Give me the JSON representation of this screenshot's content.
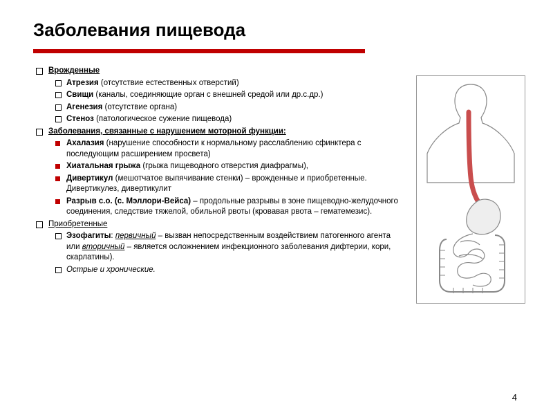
{
  "title": "Заболевания пищевода",
  "colors": {
    "accent": "#c00000",
    "text": "#000000",
    "bg": "#ffffff",
    "border": "#999999"
  },
  "sections": [
    {
      "heading": "Врожденные",
      "heading_style": "bold uline",
      "bullet_style": "hollow",
      "items": [
        {
          "term": "Атрезия",
          "desc": " (отсутствие естественных отверстий)"
        },
        {
          "term": "Свищи",
          "desc": " (каналы, соединяющие орган с внешней средой или др.с.др.)"
        },
        {
          "term": "Агенезия",
          "desc": " (отсутствие органа)"
        },
        {
          "term": "Стеноз",
          "desc": " (патологическое сужение пищевода)"
        }
      ]
    },
    {
      "heading": "Заболевания, связанные с нарушением моторной функции:",
      "heading_style": "bold uline",
      "bullet_style": "red",
      "items": [
        {
          "term": "Ахалазия",
          "desc": " (нарушение способности к нормальному расслаблению сфинктера с последующим расширением просвета)"
        },
        {
          "term": "Хиатальная грыжа",
          "desc": " (грыжа пищеводного отверстия диафрагмы),"
        },
        {
          "term": "Дивертикул",
          "desc": " (мешотчатое выпячивание стенки) – врожденные и приобретенные. Дивертикулез, дивертикулит"
        },
        {
          "term": "Разрыв с.о. (с. Мэллори-Вейса)",
          "desc": " – продольные разрывы в зоне пищеводно-желудочного соединения, следствие тяжелой, обильной рвоты (кровавая рвота – гематемезис)."
        }
      ]
    },
    {
      "heading": "Приобретенные",
      "heading_style": "uline",
      "bullet_style": "hollow",
      "items": [
        {
          "term": "Эзофагиты",
          "desc_pre": ": ",
          "ital1": "первичный",
          "mid": " – вызван непосредственным воздействием патогенного агента или ",
          "ital2": "вторичный",
          "desc_post": " – является осложнением инфекционного заболевания дифтерии, кори, скарлатины)."
        },
        {
          "italic_whole": "Острые и хронические."
        }
      ]
    }
  ],
  "page_number": "4",
  "anatomy_svg": {
    "esophagus_color": "#c94d4d",
    "outline_color": "#888888",
    "stomach_fill": "#eeeeee"
  }
}
